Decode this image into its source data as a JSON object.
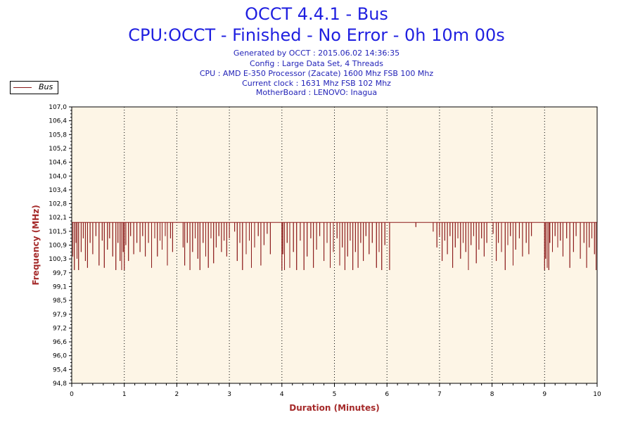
{
  "title": "OCCT 4.4.1 - Bus",
  "subtitle": "CPU:OCCT - Finished - No Error - 0h 10m 00s",
  "info_lines": [
    "Generated by OCCT : 2015.06.02 14:36:35",
    "Config : Large Data Set, 4 Threads",
    "CPU : AMD E-350 Processor (Zacate) 1600 Mhz FSB 100 Mhz",
    "Current clock : 1631 Mhz FSB 102 Mhz",
    "MotherBoard : LENOVO: Inagua"
  ],
  "legend": {
    "label": "Bus",
    "color": "#8b1a1a"
  },
  "colors": {
    "plot_background": "#fdf5e6",
    "series": "#8b1a1a",
    "axis_title": "#a52a2a",
    "title": "#1f1fe0",
    "info": "#2323b8"
  },
  "chart_data": {
    "type": "line",
    "title": "OCCT 4.4.1 - Bus",
    "subtitle": "CPU:OCCT - Finished - No Error - 0h 10m 00s",
    "xlabel": "Duration (Minutes)",
    "ylabel": "Frequency (MHz)",
    "xlim": [
      0,
      10
    ],
    "ylim": [
      94.8,
      107.0
    ],
    "xticks": [
      "0",
      "1",
      "2",
      "3",
      "4",
      "5",
      "6",
      "7",
      "8",
      "9",
      "10"
    ],
    "yticks": [
      "94,8",
      "95,4",
      "96,0",
      "96,6",
      "97,2",
      "97,9",
      "98,5",
      "99,1",
      "99,7",
      "100,3",
      "100,9",
      "101,5",
      "102,1",
      "102,8",
      "103,4",
      "104,0",
      "104,6",
      "105,2",
      "105,8",
      "106,4",
      "107,0"
    ],
    "grid": {
      "vertical": true,
      "horizontal": false,
      "style": "dotted"
    },
    "legend_position": "top-left",
    "series": [
      {
        "name": "Bus",
        "baseline": 101.9,
        "min": 99.7,
        "dips": [
          {
            "x": 0.02,
            "y": 100.4
          },
          {
            "x": 0.05,
            "y": 99.8
          },
          {
            "x": 0.08,
            "y": 101.0
          },
          {
            "x": 0.1,
            "y": 100.3
          },
          {
            "x": 0.13,
            "y": 99.8
          },
          {
            "x": 0.18,
            "y": 100.6
          },
          {
            "x": 0.22,
            "y": 101.2
          },
          {
            "x": 0.26,
            "y": 100.2
          },
          {
            "x": 0.3,
            "y": 99.9
          },
          {
            "x": 0.35,
            "y": 101.0
          },
          {
            "x": 0.4,
            "y": 100.5
          },
          {
            "x": 0.46,
            "y": 101.3
          },
          {
            "x": 0.52,
            "y": 100.0
          },
          {
            "x": 0.58,
            "y": 101.1
          },
          {
            "x": 0.62,
            "y": 99.9
          },
          {
            "x": 0.68,
            "y": 100.7
          },
          {
            "x": 0.72,
            "y": 101.2
          },
          {
            "x": 0.78,
            "y": 100.4
          },
          {
            "x": 0.84,
            "y": 99.8
          },
          {
            "x": 0.88,
            "y": 101.0
          },
          {
            "x": 0.92,
            "y": 100.2
          },
          {
            "x": 0.95,
            "y": 99.8
          },
          {
            "x": 0.98,
            "y": 100.6
          },
          {
            "x": 1.0,
            "y": 99.8
          },
          {
            "x": 1.03,
            "y": 100.9
          },
          {
            "x": 1.08,
            "y": 100.2
          },
          {
            "x": 1.12,
            "y": 101.3
          },
          {
            "x": 1.18,
            "y": 100.5
          },
          {
            "x": 1.24,
            "y": 101.0
          },
          {
            "x": 1.3,
            "y": 100.6
          },
          {
            "x": 1.35,
            "y": 101.3
          },
          {
            "x": 1.4,
            "y": 100.4
          },
          {
            "x": 1.46,
            "y": 101.0
          },
          {
            "x": 1.52,
            "y": 99.9
          },
          {
            "x": 1.58,
            "y": 101.2
          },
          {
            "x": 1.63,
            "y": 100.4
          },
          {
            "x": 1.68,
            "y": 101.1
          },
          {
            "x": 1.72,
            "y": 100.7
          },
          {
            "x": 1.78,
            "y": 101.3
          },
          {
            "x": 1.82,
            "y": 100.0
          },
          {
            "x": 1.88,
            "y": 101.2
          },
          {
            "x": 1.92,
            "y": 100.6
          },
          {
            "x": 2.12,
            "y": 100.8
          },
          {
            "x": 2.15,
            "y": 100.0
          },
          {
            "x": 2.2,
            "y": 101.0
          },
          {
            "x": 2.25,
            "y": 99.8
          },
          {
            "x": 2.3,
            "y": 100.6
          },
          {
            "x": 2.35,
            "y": 101.2
          },
          {
            "x": 2.4,
            "y": 100.3
          },
          {
            "x": 2.44,
            "y": 99.8
          },
          {
            "x": 2.5,
            "y": 101.0
          },
          {
            "x": 2.55,
            "y": 100.4
          },
          {
            "x": 2.6,
            "y": 99.9
          },
          {
            "x": 2.65,
            "y": 101.2
          },
          {
            "x": 2.7,
            "y": 100.1
          },
          {
            "x": 2.75,
            "y": 100.8
          },
          {
            "x": 2.8,
            "y": 101.3
          },
          {
            "x": 2.85,
            "y": 100.6
          },
          {
            "x": 2.9,
            "y": 101.1
          },
          {
            "x": 2.95,
            "y": 100.4
          },
          {
            "x": 3.0,
            "y": 101.2
          },
          {
            "x": 3.1,
            "y": 101.5
          },
          {
            "x": 3.15,
            "y": 100.2
          },
          {
            "x": 3.2,
            "y": 101.0
          },
          {
            "x": 3.25,
            "y": 99.8
          },
          {
            "x": 3.32,
            "y": 100.5
          },
          {
            "x": 3.38,
            "y": 101.1
          },
          {
            "x": 3.42,
            "y": 99.9
          },
          {
            "x": 3.48,
            "y": 100.8
          },
          {
            "x": 3.55,
            "y": 101.3
          },
          {
            "x": 3.6,
            "y": 100.0
          },
          {
            "x": 3.66,
            "y": 100.9
          },
          {
            "x": 3.72,
            "y": 101.4
          },
          {
            "x": 3.78,
            "y": 100.5
          },
          {
            "x": 4.0,
            "y": 99.8
          },
          {
            "x": 4.02,
            "y": 100.5
          },
          {
            "x": 4.05,
            "y": 99.8
          },
          {
            "x": 4.1,
            "y": 101.0
          },
          {
            "x": 4.15,
            "y": 99.9
          },
          {
            "x": 4.22,
            "y": 100.6
          },
          {
            "x": 4.28,
            "y": 99.8
          },
          {
            "x": 4.35,
            "y": 101.1
          },
          {
            "x": 4.42,
            "y": 99.8
          },
          {
            "x": 4.48,
            "y": 100.4
          },
          {
            "x": 4.55,
            "y": 101.2
          },
          {
            "x": 4.6,
            "y": 99.9
          },
          {
            "x": 4.66,
            "y": 100.7
          },
          {
            "x": 4.72,
            "y": 101.3
          },
          {
            "x": 4.8,
            "y": 100.2
          },
          {
            "x": 4.86,
            "y": 101.0
          },
          {
            "x": 4.92,
            "y": 99.9
          },
          {
            "x": 4.98,
            "y": 100.6
          },
          {
            "x": 5.05,
            "y": 101.2
          },
          {
            "x": 5.1,
            "y": 100.0
          },
          {
            "x": 5.15,
            "y": 100.8
          },
          {
            "x": 5.2,
            "y": 99.8
          },
          {
            "x": 5.25,
            "y": 100.4
          },
          {
            "x": 5.3,
            "y": 101.1
          },
          {
            "x": 5.35,
            "y": 99.8
          },
          {
            "x": 5.4,
            "y": 100.6
          },
          {
            "x": 5.45,
            "y": 99.9
          },
          {
            "x": 5.5,
            "y": 101.0
          },
          {
            "x": 5.55,
            "y": 100.2
          },
          {
            "x": 5.6,
            "y": 101.3
          },
          {
            "x": 5.66,
            "y": 100.5
          },
          {
            "x": 5.72,
            "y": 101.0
          },
          {
            "x": 5.8,
            "y": 99.9
          },
          {
            "x": 5.85,
            "y": 100.6
          },
          {
            "x": 5.9,
            "y": 99.8
          },
          {
            "x": 5.96,
            "y": 100.9
          },
          {
            "x": 6.05,
            "y": 99.8
          },
          {
            "x": 6.55,
            "y": 101.7
          },
          {
            "x": 6.88,
            "y": 101.5
          },
          {
            "x": 6.95,
            "y": 100.8
          },
          {
            "x": 7.0,
            "y": 101.3
          },
          {
            "x": 7.05,
            "y": 100.2
          },
          {
            "x": 7.1,
            "y": 101.1
          },
          {
            "x": 7.15,
            "y": 100.5
          },
          {
            "x": 7.2,
            "y": 101.3
          },
          {
            "x": 7.25,
            "y": 99.9
          },
          {
            "x": 7.3,
            "y": 100.8
          },
          {
            "x": 7.35,
            "y": 101.2
          },
          {
            "x": 7.4,
            "y": 100.3
          },
          {
            "x": 7.45,
            "y": 101.0
          },
          {
            "x": 7.5,
            "y": 100.6
          },
          {
            "x": 7.55,
            "y": 99.8
          },
          {
            "x": 7.6,
            "y": 100.9
          },
          {
            "x": 7.65,
            "y": 101.3
          },
          {
            "x": 7.7,
            "y": 100.1
          },
          {
            "x": 7.75,
            "y": 100.7
          },
          {
            "x": 7.8,
            "y": 101.2
          },
          {
            "x": 7.85,
            "y": 100.4
          },
          {
            "x": 7.9,
            "y": 101.0
          },
          {
            "x": 8.02,
            "y": 101.4
          },
          {
            "x": 8.08,
            "y": 100.2
          },
          {
            "x": 8.12,
            "y": 101.0
          },
          {
            "x": 8.18,
            "y": 100.6
          },
          {
            "x": 8.25,
            "y": 99.8
          },
          {
            "x": 8.3,
            "y": 100.9
          },
          {
            "x": 8.35,
            "y": 101.3
          },
          {
            "x": 8.4,
            "y": 100.0
          },
          {
            "x": 8.45,
            "y": 100.7
          },
          {
            "x": 8.52,
            "y": 101.2
          },
          {
            "x": 8.58,
            "y": 100.4
          },
          {
            "x": 8.65,
            "y": 101.0
          },
          {
            "x": 8.7,
            "y": 100.5
          },
          {
            "x": 8.75,
            "y": 101.3
          },
          {
            "x": 9.0,
            "y": 99.8
          },
          {
            "x": 9.02,
            "y": 100.3
          },
          {
            "x": 9.05,
            "y": 99.9
          },
          {
            "x": 9.08,
            "y": 99.8
          },
          {
            "x": 9.1,
            "y": 101.0
          },
          {
            "x": 9.15,
            "y": 100.6
          },
          {
            "x": 9.2,
            "y": 101.3
          },
          {
            "x": 9.25,
            "y": 100.8
          },
          {
            "x": 9.3,
            "y": 101.1
          },
          {
            "x": 9.35,
            "y": 100.4
          },
          {
            "x": 9.42,
            "y": 101.2
          },
          {
            "x": 9.48,
            "y": 99.9
          },
          {
            "x": 9.55,
            "y": 100.6
          },
          {
            "x": 9.6,
            "y": 101.3
          },
          {
            "x": 9.68,
            "y": 100.3
          },
          {
            "x": 9.75,
            "y": 101.0
          },
          {
            "x": 9.8,
            "y": 99.9
          },
          {
            "x": 9.85,
            "y": 100.8
          },
          {
            "x": 9.9,
            "y": 101.2
          },
          {
            "x": 9.95,
            "y": 100.5
          },
          {
            "x": 9.98,
            "y": 99.8
          }
        ]
      }
    ]
  }
}
